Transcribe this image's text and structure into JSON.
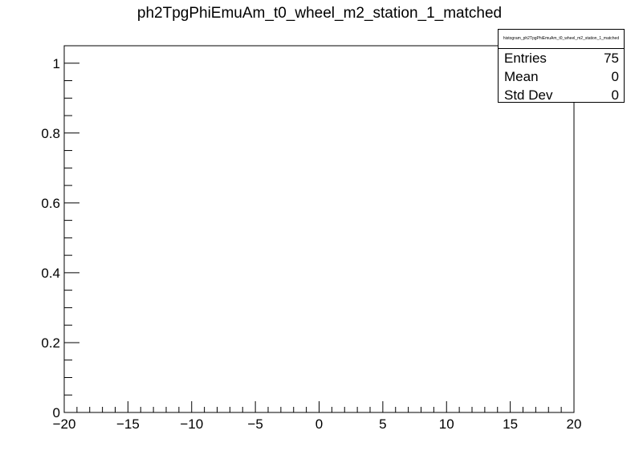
{
  "chart_data": {
    "type": "histogram",
    "title": "ph2TpgPhiEmuAm_t0_wheel_m2_station_1_matched",
    "xlim": [
      -20,
      20
    ],
    "ylim": [
      0,
      1.05
    ],
    "x_ticks": [
      -20,
      -15,
      -10,
      -5,
      0,
      5,
      10,
      15,
      20
    ],
    "x_tick_labels": [
      "−20",
      "−15",
      "−10",
      "−5",
      "0",
      "5",
      "10",
      "15",
      "20"
    ],
    "y_ticks": [
      0,
      0.2,
      0.4,
      0.6,
      0.8,
      1
    ],
    "y_tick_labels": [
      "0",
      "0.2",
      "0.4",
      "0.6",
      "0.8",
      "1"
    ],
    "series": [],
    "stats": {
      "name": "histogram_ph2TpgPhiEmuAm_t0_wheel_m2_station_1_matched",
      "rows": [
        {
          "label": "Entries",
          "value": "75"
        },
        {
          "label": "Mean",
          "value": "0"
        },
        {
          "label": "Std Dev",
          "value": "0"
        }
      ]
    }
  }
}
